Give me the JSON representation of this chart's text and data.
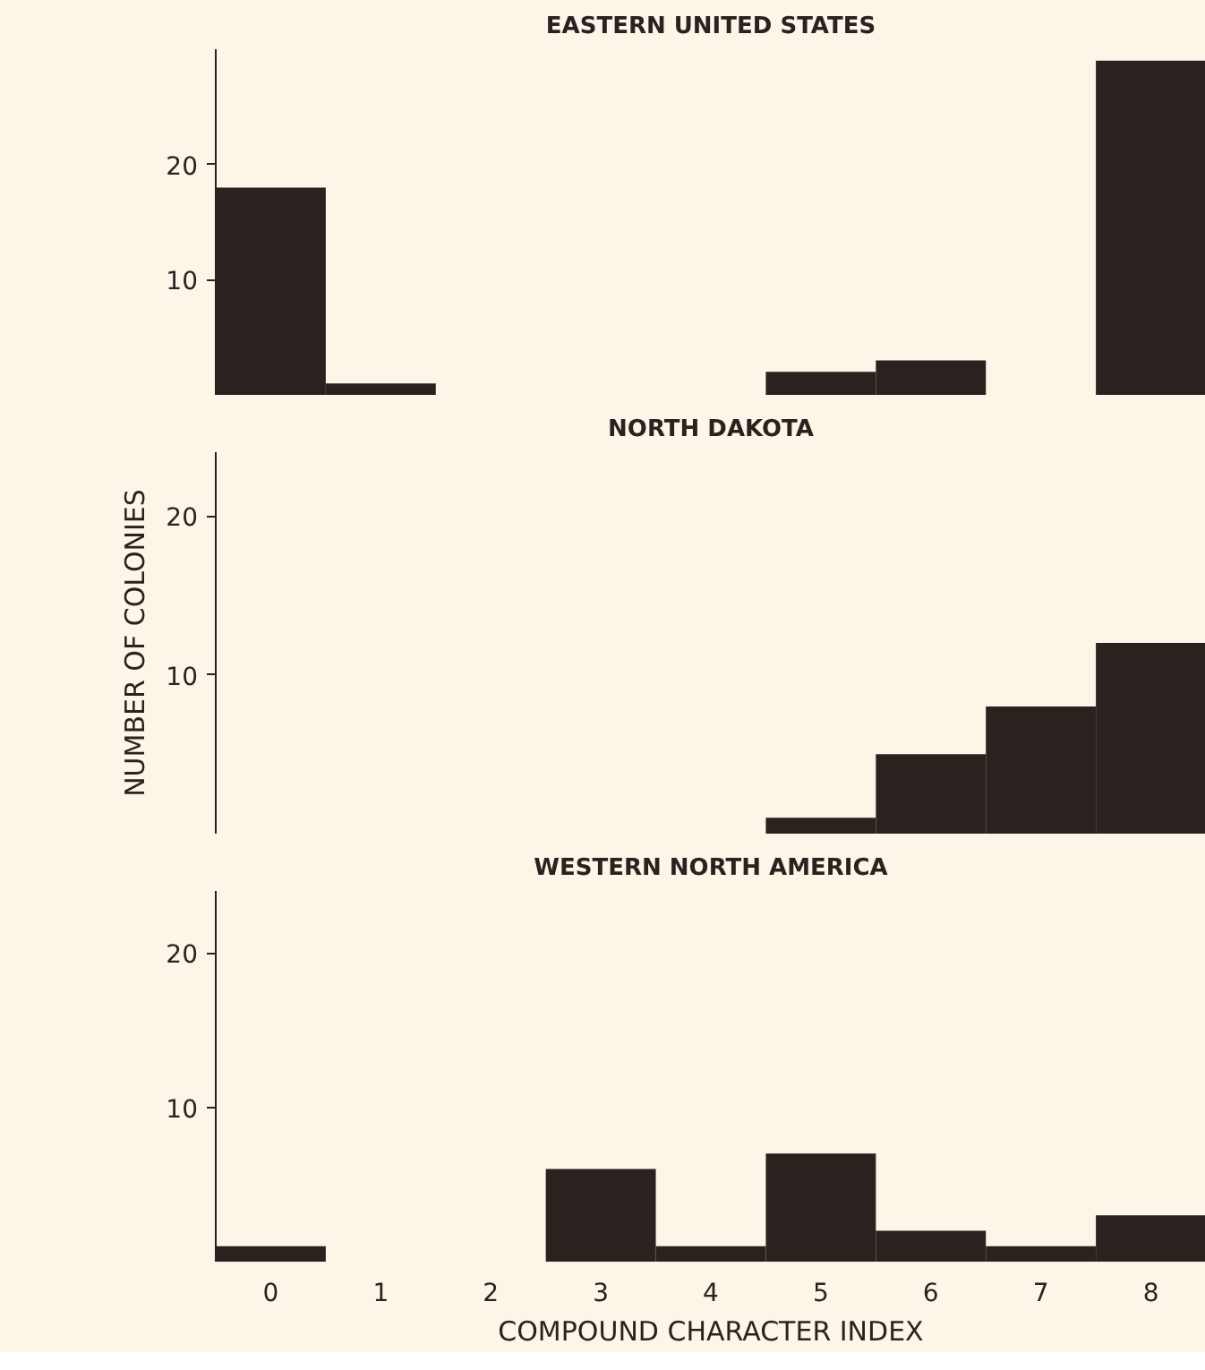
{
  "chart_data": [
    {
      "type": "bar",
      "title": "EASTERN UNITED STATES",
      "categories": [
        "0",
        "1",
        "2",
        "3",
        "4",
        "5",
        "6",
        "7",
        "8"
      ],
      "values": [
        18,
        1,
        0,
        0,
        0,
        2,
        3,
        0,
        29
      ],
      "color": "#2b2220",
      "ylim": [
        0,
        30
      ],
      "yticks": [
        10,
        20
      ],
      "grid": false,
      "tick_labels": "y"
    },
    {
      "type": "bar",
      "title": "NORTH DAKOTA",
      "ylabel": "NUMBER OF COLONIES",
      "categories": [
        "0",
        "1",
        "2",
        "3",
        "4",
        "5",
        "6",
        "7",
        "8"
      ],
      "values": [
        0,
        0,
        0,
        0,
        0,
        1,
        5,
        8,
        12
      ],
      "color": "#2b2220",
      "ylim": [
        0,
        24
      ],
      "yticks": [
        10,
        20
      ],
      "grid": false,
      "tick_labels": "y"
    },
    {
      "type": "bar",
      "title": "WESTERN NORTH AMERICA",
      "xlabel": "COMPOUND CHARACTER INDEX",
      "categories": [
        "0",
        "1",
        "2",
        "3",
        "4",
        "5",
        "6",
        "7",
        "8"
      ],
      "values": [
        1,
        0,
        0,
        6,
        1,
        7,
        2,
        1,
        3
      ],
      "color": "#2b2220",
      "ylim": [
        0,
        24
      ],
      "yticks": [
        10,
        20
      ],
      "grid": false
    }
  ]
}
